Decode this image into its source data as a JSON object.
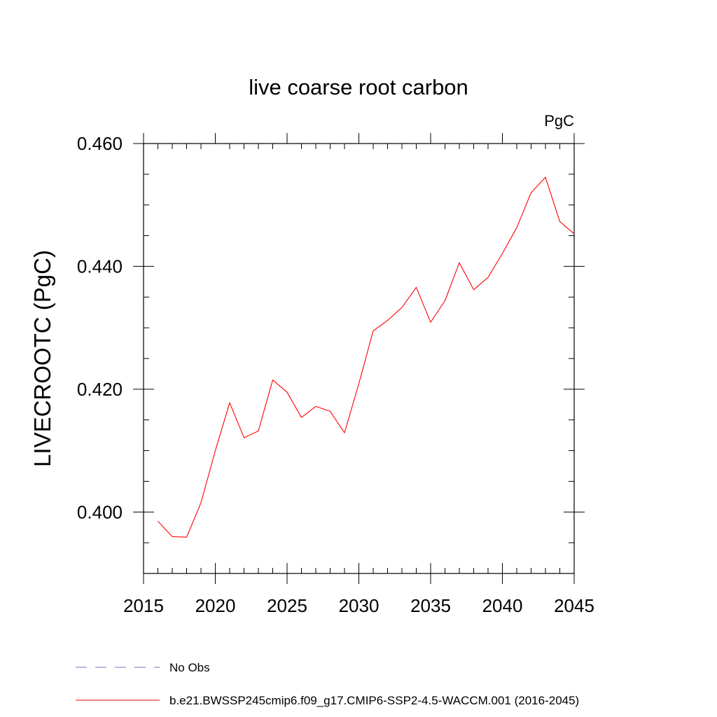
{
  "chart_data": {
    "type": "line",
    "title": "live coarse root carbon",
    "units": "PgC",
    "ylabel": "LIVECROOTC  (PgC)",
    "xlabel": "",
    "xlim": [
      2015,
      2045
    ],
    "ylim": [
      0.39,
      0.46
    ],
    "xticks": [
      2015,
      2020,
      2025,
      2030,
      2035,
      2040,
      2045
    ],
    "yticks": [
      0.4,
      0.42,
      0.44,
      0.46
    ],
    "ytick_labels": [
      "0.400",
      "0.420",
      "0.440",
      "0.460"
    ],
    "x_minor_step": 1,
    "y_minor_step": 0.005,
    "grid": false,
    "legend_position": "bottom",
    "series": [
      {
        "name": "b.e21.BWSSP245cmip6.f09_g17.CMIP6-SSP2-4.5-WACCM.001 (2016-2045)",
        "color": "#ff0000",
        "style": "solid",
        "x": [
          2016,
          2017,
          2018,
          2019,
          2020,
          2021,
          2022,
          2023,
          2024,
          2025,
          2026,
          2027,
          2028,
          2029,
          2030,
          2031,
          2032,
          2033,
          2034,
          2035,
          2036,
          2037,
          2038,
          2039,
          2040,
          2041,
          2042,
          2043,
          2044,
          2045
        ],
        "y": [
          0.3985,
          0.396,
          0.3959,
          0.4015,
          0.41,
          0.4178,
          0.4121,
          0.4132,
          0.4215,
          0.4195,
          0.4154,
          0.4172,
          0.4164,
          0.4129,
          0.4209,
          0.4295,
          0.4312,
          0.4333,
          0.4366,
          0.4309,
          0.4344,
          0.4406,
          0.4362,
          0.4382,
          0.4421,
          0.4463,
          0.452,
          0.4545,
          0.4473,
          0.4453
        ]
      }
    ],
    "legend": [
      {
        "label": "No Obs",
        "color": "#7b6fc4",
        "style": "dashed"
      },
      {
        "label": "b.e21.BWSSP245cmip6.f09_g17.CMIP6-SSP2-4.5-WACCM.001 (2016-2045)",
        "color": "#ff0000",
        "style": "solid"
      }
    ]
  }
}
